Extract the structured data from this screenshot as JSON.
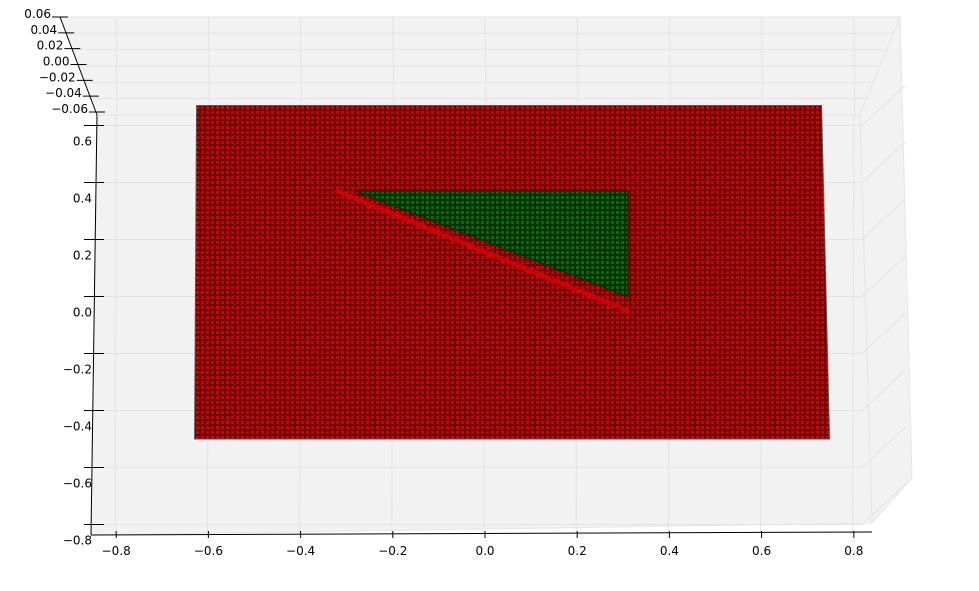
{
  "chart_data": {
    "type": "scatter",
    "projection": "3d",
    "background": "#ffffff",
    "pane_color": "#f2f2f2",
    "grid": true,
    "x": {
      "ticks": [
        "−0.8",
        "−0.6",
        "−0.4",
        "−0.2",
        "0.0",
        "0.2",
        "0.4",
        "0.6",
        "0.8"
      ],
      "lim": [
        -0.84,
        0.84
      ]
    },
    "y": {
      "ticks": [
        "−0.8",
        "−0.6",
        "−0.4",
        "−0.2",
        "0.0",
        "0.2",
        "0.4",
        "0.6"
      ],
      "lim": [
        -0.8,
        0.68
      ]
    },
    "z": {
      "ticks": [
        "0.06",
        "0.04",
        "0.02",
        "0.00",
        "−0.02",
        "−0.04",
        "−0.06"
      ],
      "lim": [
        -0.06,
        0.06
      ]
    },
    "series": [
      {
        "color": "#cc0000",
        "edge_color": "#000000",
        "shape": "rectangle",
        "x_range": [
          -0.63,
          0.73
        ],
        "y_range": [
          -0.5,
          0.67
        ],
        "z": 0
      },
      {
        "color": "#006400",
        "edge_color": "#000000",
        "shape": "triangle",
        "vertices": [
          [
            -0.28,
            0.37
          ],
          [
            0.31,
            0.37
          ],
          [
            0.31,
            0.0
          ]
        ],
        "z": 0
      }
    ],
    "boundary_line": {
      "color": "#cc0000",
      "from": [
        -0.32,
        0.37
      ],
      "to": [
        0.31,
        -0.05
      ]
    }
  }
}
